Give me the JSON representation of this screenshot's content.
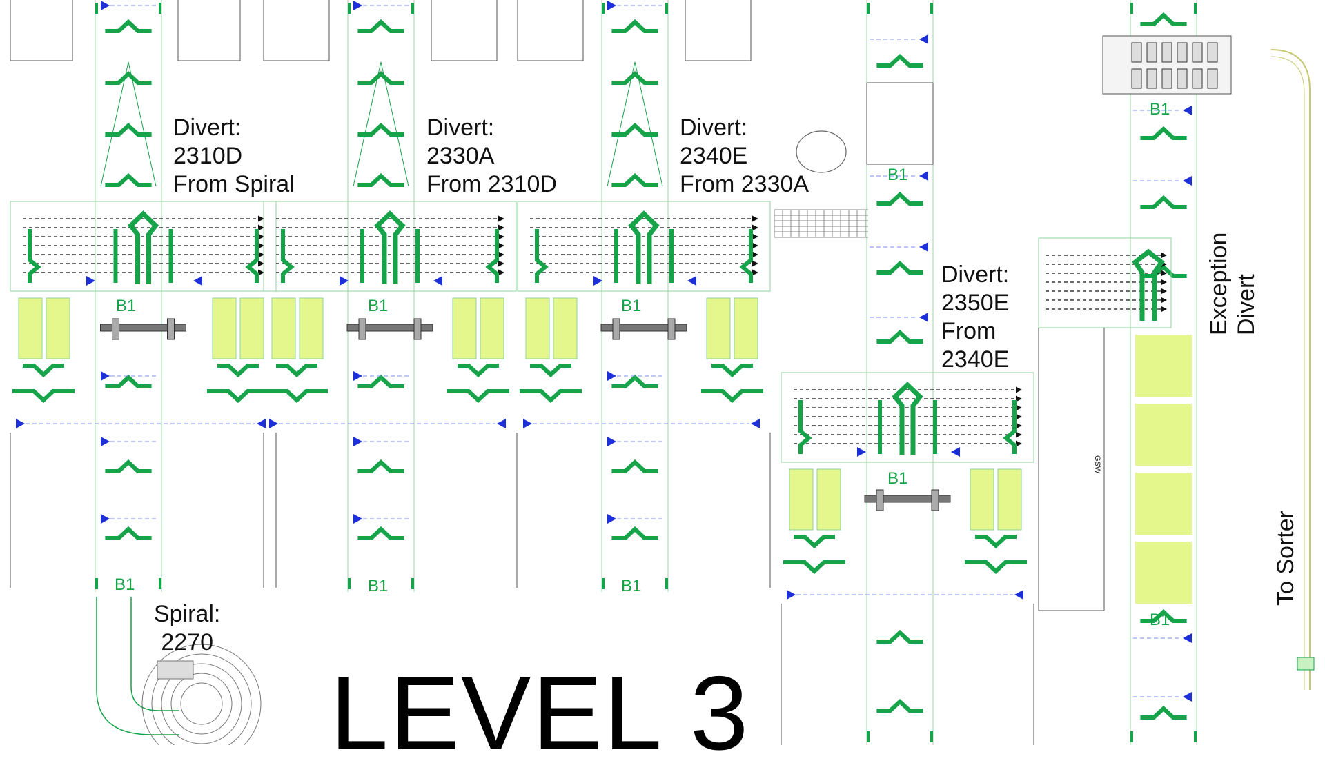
{
  "title": "LEVEL 3",
  "colors": {
    "conveyor": "#16a34a",
    "accent_fill": "#e3f78c",
    "arrow": "#1d2fd6",
    "line": "#222222"
  },
  "divert_labels": [
    {
      "text": "Divert:\n2310D\nFrom Spiral"
    },
    {
      "text": "Divert:\n2330A\nFrom 2310D"
    },
    {
      "text": "Divert:\n2340E\nFrom 2330A"
    },
    {
      "text": "Divert:\n2350E\nFrom\n2340E"
    }
  ],
  "spiral_label": "Spiral:\n2270",
  "exception_label": "Exception\nDivert",
  "sorter_label": "To Sorter",
  "gsw_label": "GSW",
  "b1_tag": "B1"
}
